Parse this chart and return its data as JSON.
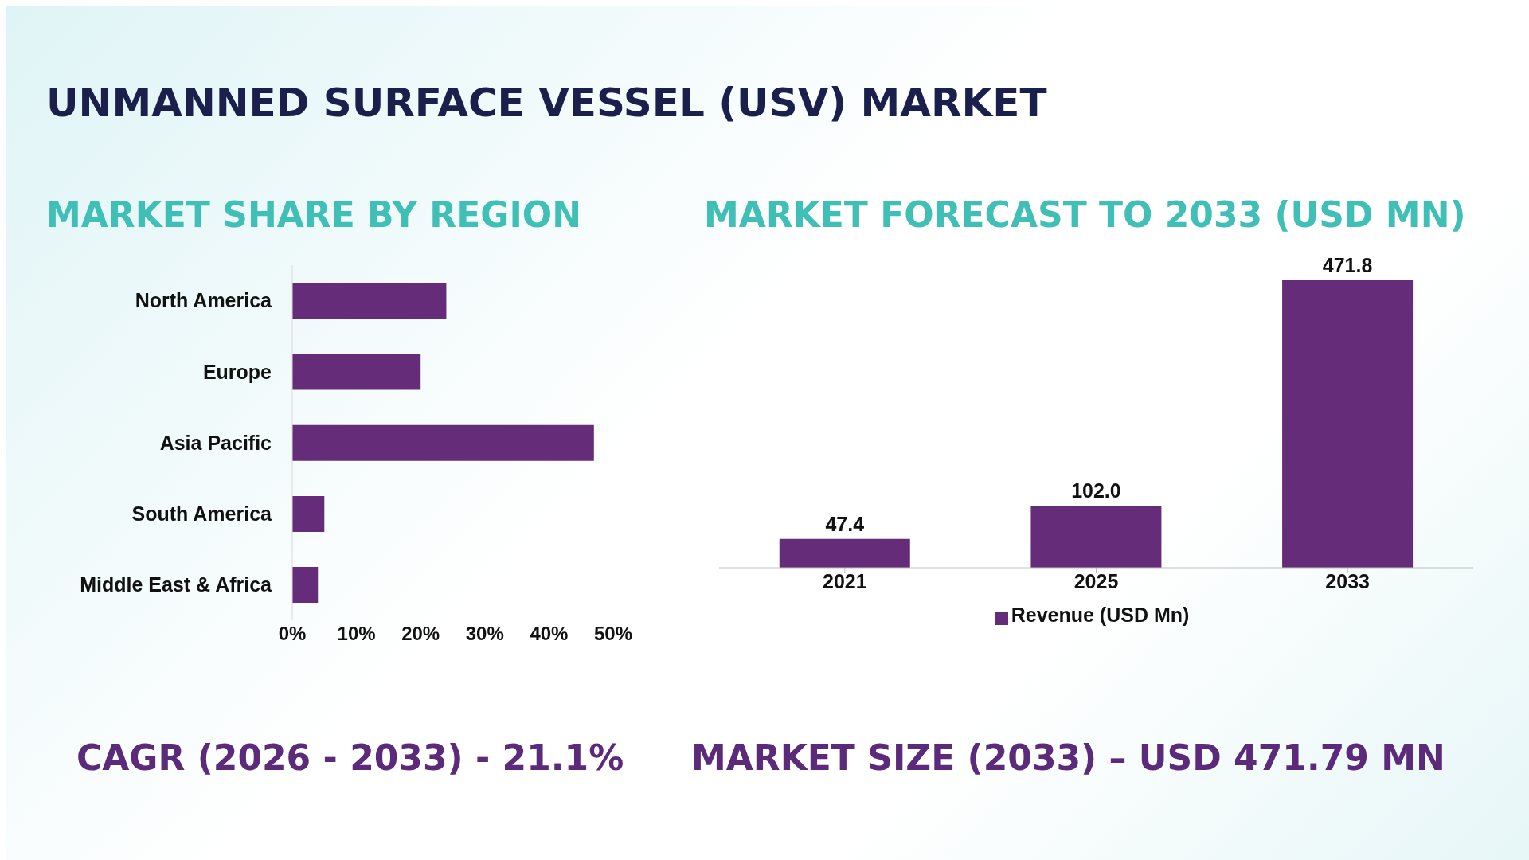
{
  "chart_data": [
    {
      "type": "bar",
      "orientation": "horizontal",
      "title": "UNMANNED SURFACE VESSEL (USV) MARKET",
      "subtitle": "MARKET SHARE BY REGION",
      "categories": [
        "North America",
        "Europe",
        "Asia Pacific",
        "South America",
        "Middle East & Africa"
      ],
      "values": [
        24,
        20,
        47,
        5,
        4
      ],
      "color": "#652d79",
      "xlim": [
        0,
        50
      ],
      "xticks": [
        {
          "value": 0,
          "label": "0%"
        },
        {
          "value": 10,
          "label": "10%"
        },
        {
          "value": 20,
          "label": "20%"
        },
        {
          "value": 30,
          "label": "30%"
        },
        {
          "value": 40,
          "label": "40%"
        },
        {
          "value": 50,
          "label": "50%"
        }
      ],
      "annotations": [
        "CAGR (2026 - 2033) - 21.1%"
      ]
    },
    {
      "type": "bar",
      "title": "MARKET FORECAST TO 2033 (USD MN)",
      "categories": [
        "2021",
        "2025",
        "2033"
      ],
      "series": [
        {
          "name": "Revenue (USD Mn)",
          "color": "#652d79",
          "values": [
            47.4,
            102.0,
            471.8
          ],
          "value_labels": [
            "47.4",
            "102.0",
            "471.8"
          ]
        }
      ],
      "legend": "bottom",
      "annotations": [
        "MARKET SIZE (2033) – USD 471.79 MN"
      ]
    }
  ]
}
